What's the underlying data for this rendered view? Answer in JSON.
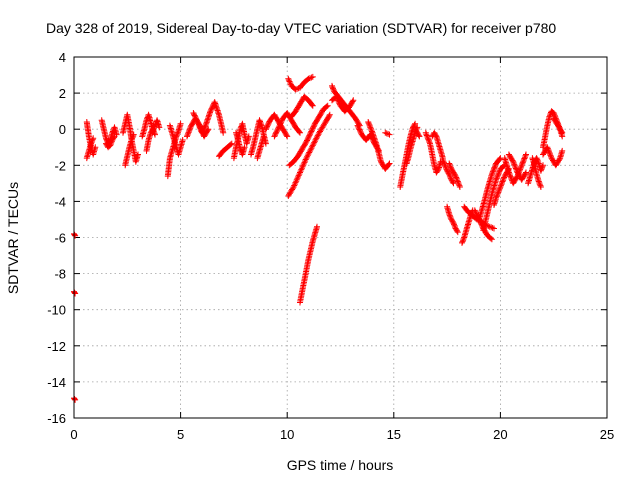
{
  "chart_data": {
    "type": "scatter",
    "title": "Day 328 of 2019, Sidereal Day-to-day VTEC variation (SDTVAR) for receiver p780",
    "xlabel": "GPS time / hours",
    "ylabel": "SDTVAR / TECUs",
    "xlim": [
      0,
      25
    ],
    "ylim": [
      -16,
      4
    ],
    "xticks": [
      0,
      5,
      10,
      15,
      20,
      25
    ],
    "yticks": [
      -16,
      -14,
      -12,
      -10,
      -8,
      -6,
      -4,
      -2,
      0,
      2,
      4
    ],
    "grid": true,
    "marker": "plus",
    "color": "#ff0000",
    "series": [
      {
        "name": "SDTVAR",
        "segments": [
          {
            "x": [
              0.0,
              0.05
            ],
            "y": [
              -5.8,
              -5.9
            ]
          },
          {
            "x": [
              0.0,
              0.05
            ],
            "y": [
              -9.0,
              -9.1
            ]
          },
          {
            "x": [
              0.0,
              0.05
            ],
            "y": [
              -14.9,
              -15.0
            ]
          },
          {
            "x": [
              0.6,
              0.7,
              0.8,
              0.9,
              1.0
            ],
            "y": [
              0.4,
              -0.4,
              -1.0,
              -1.4,
              -1.0
            ]
          },
          {
            "x": [
              0.6,
              0.7,
              0.8,
              0.9
            ],
            "y": [
              -1.6,
              -1.2,
              -0.8,
              -0.5
            ]
          },
          {
            "x": [
              1.3,
              1.4,
              1.5,
              1.6,
              1.7,
              1.8,
              1.9,
              2.0
            ],
            "y": [
              0.5,
              0.0,
              -0.5,
              -0.8,
              -0.6,
              -0.2,
              0.1,
              -0.3
            ]
          },
          {
            "x": [
              1.5,
              1.6,
              1.7,
              1.8,
              1.9
            ],
            "y": [
              -0.8,
              -1.0,
              -0.9,
              -0.6,
              -0.4
            ]
          },
          {
            "x": [
              2.3,
              2.4,
              2.5,
              2.6,
              2.7,
              2.8,
              2.9,
              3.0
            ],
            "y": [
              -0.2,
              0.3,
              0.8,
              0.2,
              -0.6,
              -1.2,
              -1.8,
              -1.4
            ]
          },
          {
            "x": [
              2.4,
              2.5,
              2.6,
              2.7,
              2.8
            ],
            "y": [
              -2.0,
              -1.5,
              -1.0,
              -0.6,
              -0.3
            ]
          },
          {
            "x": [
              3.2,
              3.3,
              3.4,
              3.5,
              3.6,
              3.7,
              3.8,
              3.9,
              4.0
            ],
            "y": [
              -0.4,
              0.0,
              0.5,
              0.8,
              0.4,
              -0.1,
              0.2,
              0.5,
              0.1
            ]
          },
          {
            "x": [
              3.4,
              3.5,
              3.6,
              3.7,
              3.8
            ],
            "y": [
              -1.2,
              -0.6,
              -0.2,
              0.0,
              -0.3
            ]
          },
          {
            "x": [
              4.4,
              4.5,
              4.6,
              4.7,
              4.8,
              4.9,
              5.0
            ],
            "y": [
              -2.6,
              -1.6,
              -1.2,
              -0.8,
              -0.4,
              -0.1,
              0.3
            ]
          },
          {
            "x": [
              4.5,
              4.6,
              4.7,
              4.8,
              4.9,
              5.0,
              5.1
            ],
            "y": [
              0.2,
              -0.2,
              -0.6,
              -1.0,
              -1.4,
              -1.0,
              -0.6
            ]
          },
          {
            "x": [
              5.3,
              5.5,
              5.7,
              5.9,
              6.1,
              6.3
            ],
            "y": [
              -0.4,
              0.2,
              0.6,
              0.2,
              -0.4,
              0.0
            ]
          },
          {
            "x": [
              5.6,
              5.8,
              6.0,
              6.2,
              6.4,
              6.6,
              6.8,
              7.0
            ],
            "y": [
              0.9,
              0.4,
              -0.2,
              0.3,
              1.0,
              1.5,
              0.8,
              -0.2
            ]
          },
          {
            "x": [
              6.8,
              7.0,
              7.2,
              7.4
            ],
            "y": [
              -1.5,
              -1.2,
              -1.0,
              -0.8
            ]
          },
          {
            "x": [
              7.5,
              7.6,
              7.7,
              7.8,
              7.9,
              8.0,
              8.1,
              8.2
            ],
            "y": [
              -1.6,
              -1.0,
              -0.5,
              0.0,
              0.3,
              -0.3,
              -0.8,
              -0.4
            ]
          },
          {
            "x": [
              7.6,
              7.7,
              7.8,
              7.9,
              8.0
            ],
            "y": [
              -0.2,
              -0.6,
              -1.1,
              -1.4,
              -1.0
            ]
          },
          {
            "x": [
              8.3,
              8.4,
              8.5,
              8.6,
              8.7,
              8.8,
              8.9,
              9.0
            ],
            "y": [
              -1.4,
              -1.0,
              -0.5,
              0.0,
              0.5,
              0.2,
              -0.3,
              -0.8
            ]
          },
          {
            "x": [
              8.6,
              8.7,
              8.8,
              8.9
            ],
            "y": [
              -1.6,
              -1.2,
              -0.8,
              -0.4
            ]
          },
          {
            "x": [
              9.0,
              9.2,
              9.4,
              9.6,
              9.8,
              10.0
            ],
            "y": [
              0.0,
              0.5,
              0.8,
              0.4,
              0.0,
              -0.4
            ]
          },
          {
            "x": [
              9.4,
              9.6,
              9.8,
              10.0,
              10.2,
              10.4,
              10.6
            ],
            "y": [
              -0.4,
              0.1,
              0.6,
              0.9,
              0.5,
              0.1,
              -0.2
            ]
          },
          {
            "x": [
              10.05,
              10.2,
              10.4,
              10.6,
              10.8,
              11.0,
              11.2
            ],
            "y": [
              2.8,
              2.4,
              2.2,
              2.3,
              2.6,
              2.8,
              2.9
            ]
          },
          {
            "x": [
              10.2,
              10.4,
              10.6,
              10.8,
              11.0,
              11.2
            ],
            "y": [
              0.7,
              1.0,
              1.4,
              1.8,
              1.6,
              1.3
            ]
          },
          {
            "x": [
              10.1,
              10.3,
              10.5,
              10.7,
              10.9,
              11.1,
              11.3,
              11.5,
              11.7,
              11.9
            ],
            "y": [
              -2.0,
              -1.8,
              -1.5,
              -1.1,
              -0.7,
              -0.2,
              0.3,
              0.7,
              1.1,
              1.3
            ]
          },
          {
            "x": [
              10.05,
              10.3,
              10.6,
              10.9,
              11.2,
              11.5,
              11.8,
              12.0
            ],
            "y": [
              -3.7,
              -3.2,
              -2.4,
              -1.6,
              -0.9,
              -0.2,
              0.4,
              0.8
            ]
          },
          {
            "x": [
              10.6,
              10.7,
              10.8,
              10.9,
              11.0,
              11.1,
              11.2,
              11.3,
              11.4
            ],
            "y": [
              -9.6,
              -9.0,
              -8.4,
              -7.8,
              -7.2,
              -6.7,
              -6.2,
              -5.8,
              -5.4
            ]
          },
          {
            "x": [
              12.1,
              12.2,
              12.4,
              12.6,
              12.8,
              13.0,
              13.2,
              13.4
            ],
            "y": [
              2.4,
              2.1,
              1.8,
              1.5,
              1.2,
              0.9,
              0.6,
              0.2
            ]
          },
          {
            "x": [
              12.1,
              12.3,
              12.5,
              12.7,
              12.9,
              13.1
            ],
            "y": [
              1.6,
              1.8,
              1.3,
              1.0,
              1.2,
              1.6
            ]
          },
          {
            "x": [
              13.3,
              13.5,
              13.7,
              13.9,
              14.1,
              14.3
            ],
            "y": [
              0.2,
              -0.3,
              -0.6,
              -0.3,
              -0.8,
              -1.2
            ]
          },
          {
            "x": [
              13.8,
              14.0,
              14.2,
              14.4,
              14.6,
              14.8
            ],
            "y": [
              0.4,
              -0.2,
              -0.9,
              -1.8,
              -2.2,
              -1.9
            ]
          },
          {
            "x": [
              14.6,
              14.8
            ],
            "y": [
              -0.2,
              -0.3
            ]
          },
          {
            "x": [
              15.3,
              15.4,
              15.5,
              15.6,
              15.7,
              15.8,
              15.9,
              16.0
            ],
            "y": [
              -3.2,
              -2.6,
              -2.0,
              -1.4,
              -0.8,
              -0.3,
              0.1,
              0.3
            ]
          },
          {
            "x": [
              15.6,
              15.7,
              15.8,
              15.9,
              16.0,
              16.1
            ],
            "y": [
              -1.9,
              -1.5,
              -1.0,
              -0.6,
              -0.2,
              0.1
            ]
          },
          {
            "x": [
              16.0,
              16.1,
              16.2
            ],
            "y": [
              0.0,
              -0.2,
              -0.4
            ]
          },
          {
            "x": [
              16.5,
              16.6,
              16.7,
              16.8,
              16.9,
              17.0,
              17.1,
              17.2
            ],
            "y": [
              -0.2,
              -0.5,
              -0.8,
              -1.4,
              -2.0,
              -2.4,
              -2.2,
              -1.8
            ]
          },
          {
            "x": [
              16.8,
              16.9,
              17.0,
              17.1,
              17.2,
              17.3
            ],
            "y": [
              -0.4,
              -0.2,
              -0.4,
              -0.8,
              -1.2,
              -1.6
            ]
          },
          {
            "x": [
              17.3,
              17.4,
              17.5,
              17.6,
              17.7,
              17.8
            ],
            "y": [
              -1.7,
              -2.0,
              -2.3,
              -2.5,
              -2.8,
              -3.0
            ]
          },
          {
            "x": [
              17.6,
              17.7,
              17.8,
              17.9,
              18.0,
              18.1
            ],
            "y": [
              -1.9,
              -2.2,
              -2.4,
              -2.6,
              -2.9,
              -3.2
            ]
          },
          {
            "x": [
              17.5,
              17.6,
              17.7,
              17.8,
              17.9,
              18.0
            ],
            "y": [
              -4.3,
              -4.7,
              -5.0,
              -5.2,
              -5.5,
              -5.7
            ]
          },
          {
            "x": [
              18.2,
              18.3,
              18.4,
              18.5,
              18.6,
              18.7
            ],
            "y": [
              -6.3,
              -6.0,
              -5.6,
              -5.2,
              -4.8,
              -4.5
            ]
          },
          {
            "x": [
              18.3,
              18.5,
              18.7,
              18.9,
              19.1,
              19.3,
              19.5,
              19.7
            ],
            "y": [
              -4.3,
              -4.6,
              -4.8,
              -5.0,
              -5.1,
              -5.3,
              -5.4,
              -5.5
            ]
          },
          {
            "x": [
              18.8,
              19.0,
              19.2,
              19.4,
              19.6
            ],
            "y": [
              -4.5,
              -5.0,
              -5.5,
              -5.9,
              -6.1
            ]
          },
          {
            "x": [
              19.0,
              19.2,
              19.4,
              19.6,
              19.8,
              20.0
            ],
            "y": [
              -5.0,
              -4.2,
              -3.3,
              -2.5,
              -1.9,
              -1.6
            ]
          },
          {
            "x": [
              19.2,
              19.4,
              19.6,
              19.8,
              20.0,
              20.2
            ],
            "y": [
              -5.6,
              -4.6,
              -3.6,
              -2.8,
              -2.2,
              -2.0
            ]
          },
          {
            "x": [
              19.7,
              19.8,
              20.0,
              20.2,
              20.4
            ],
            "y": [
              -4.2,
              -3.8,
              -3.2,
              -2.6,
              -2.2
            ]
          },
          {
            "x": [
              20.2,
              20.4,
              20.6,
              20.8,
              21.0,
              21.2
            ],
            "y": [
              -1.6,
              -2.4,
              -3.0,
              -2.6,
              -2.0,
              -1.4
            ]
          },
          {
            "x": [
              20.4,
              20.6,
              20.8,
              21.0,
              21.2
            ],
            "y": [
              -1.4,
              -1.8,
              -2.4,
              -2.8,
              -2.4
            ]
          },
          {
            "x": [
              21.3,
              21.4,
              21.5,
              21.6,
              21.7,
              21.8,
              21.9,
              22.0
            ],
            "y": [
              -3.0,
              -2.6,
              -2.2,
              -1.8,
              -1.6,
              -1.9,
              -2.3,
              -2.0
            ]
          },
          {
            "x": [
              21.5,
              21.6,
              21.7,
              21.8,
              21.9
            ],
            "y": [
              -1.6,
              -2.0,
              -2.5,
              -2.9,
              -3.2
            ]
          },
          {
            "x": [
              22.0,
              22.1,
              22.2,
              22.3,
              22.4,
              22.5,
              22.6,
              22.7,
              22.8,
              22.9
            ],
            "y": [
              -1.0,
              -0.4,
              0.2,
              0.7,
              1.0,
              0.9,
              0.6,
              0.3,
              0.0,
              -0.4
            ]
          },
          {
            "x": [
              22.0,
              22.2,
              22.4,
              22.6,
              22.8,
              22.9
            ],
            "y": [
              -1.4,
              -1.0,
              -1.6,
              -2.0,
              -1.6,
              -1.2
            ]
          },
          {
            "x": [
              22.5,
              22.6,
              22.7,
              22.8,
              22.9
            ],
            "y": [
              0.6,
              0.4,
              0.2,
              0.0,
              -0.2
            ]
          }
        ]
      }
    ]
  }
}
